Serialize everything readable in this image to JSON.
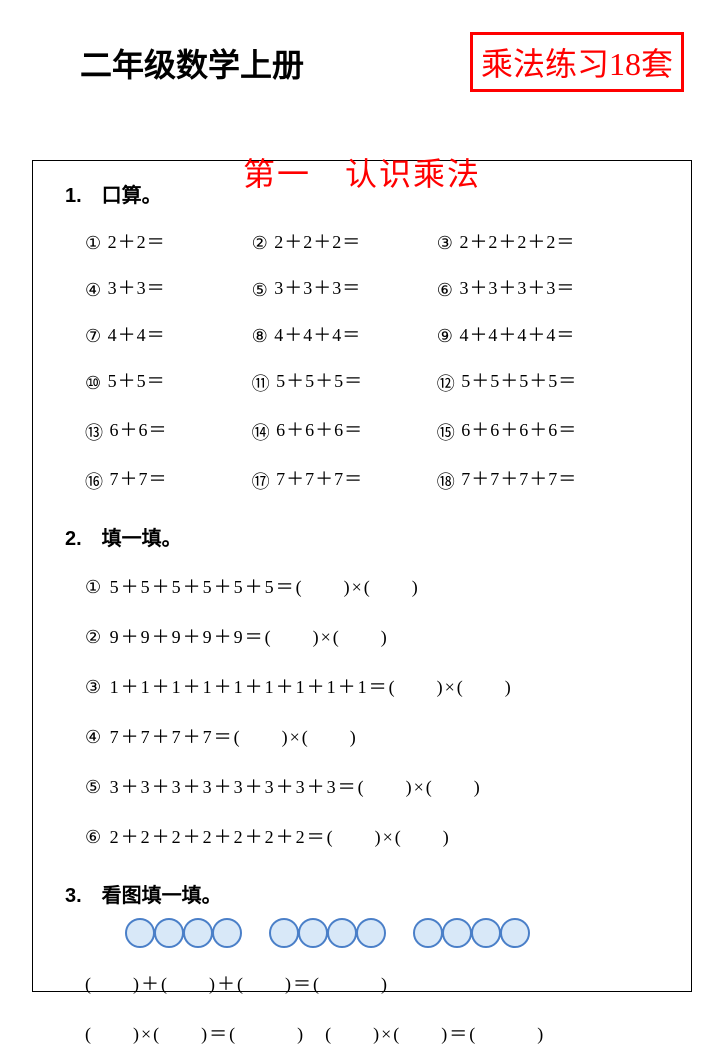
{
  "header": {
    "title": "二年级数学上册",
    "stamp": "乘法练习18套",
    "subtitle": "第一　认识乘法"
  },
  "section1": {
    "title": "1.　口算。",
    "problems": [
      {
        "num": "①",
        "expr": "2＋2＝"
      },
      {
        "num": "②",
        "expr": "2＋2＋2＝"
      },
      {
        "num": "③",
        "expr": "2＋2＋2＋2＝"
      },
      {
        "num": "④",
        "expr": "3＋3＝"
      },
      {
        "num": "⑤",
        "expr": "3＋3＋3＝"
      },
      {
        "num": "⑥",
        "expr": "3＋3＋3＋3＝"
      },
      {
        "num": "⑦",
        "expr": "4＋4＝"
      },
      {
        "num": "⑧",
        "expr": "4＋4＋4＝"
      },
      {
        "num": "⑨",
        "expr": "4＋4＋4＋4＝"
      },
      {
        "num": "⑩",
        "expr": "5＋5＝"
      },
      {
        "num": "⑪",
        "expr": "5＋5＋5＝"
      },
      {
        "num": "⑫",
        "expr": "5＋5＋5＋5＝"
      },
      {
        "num": "⑬",
        "expr": "6＋6＝"
      },
      {
        "num": "⑭",
        "expr": "6＋6＋6＝"
      },
      {
        "num": "⑮",
        "expr": "6＋6＋6＋6＝"
      },
      {
        "num": "⑯",
        "expr": "7＋7＝"
      },
      {
        "num": "⑰",
        "expr": "7＋7＋7＝"
      },
      {
        "num": "⑱",
        "expr": "7＋7＋7＋7＝"
      }
    ]
  },
  "section2": {
    "title": "2.　填一填。",
    "items": [
      "① 5＋5＋5＋5＋5＋5＝(　　)×(　　)",
      "② 9＋9＋9＋9＋9＝(　　)×(　　)",
      "③ 1＋1＋1＋1＋1＋1＋1＋1＋1＝(　　)×(　　)",
      "④ 7＋7＋7＋7＝(　　)×(　　)",
      "⑤ 3＋3＋3＋3＋3＋3＋3＋3＝(　　)×(　　)",
      "⑥ 2＋2＋2＋2＋2＋2＋2＝(　　)×(　　)"
    ]
  },
  "section3": {
    "title": "3.　看图填一填。",
    "groups": 3,
    "circles_per_group": 4,
    "circle_border_color": "#4a7fc8",
    "circle_fill_color": "#d8e8f8",
    "eq1": "(　　)＋(　　)＋(　　)＝(　　　)",
    "eq2": "(　　)×(　　)＝(　　　)　(　　)×(　　)＝(　　　)"
  },
  "colors": {
    "red": "#ff0000",
    "black": "#000000",
    "page_bg": "#ffffff"
  }
}
